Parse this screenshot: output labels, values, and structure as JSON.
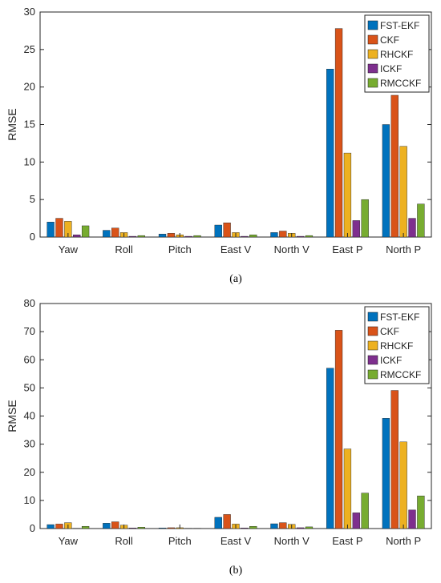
{
  "chart_data": [
    {
      "type": "bar",
      "caption": "(a)",
      "ylabel": "RMSE",
      "ylim": [
        0,
        30
      ],
      "yticks": [
        0,
        5,
        10,
        15,
        20,
        25,
        30
      ],
      "categories": [
        "Yaw",
        "Roll",
        "Pitch",
        "East V",
        "North V",
        "East P",
        "North P"
      ],
      "legend_position": "top-right",
      "series": [
        {
          "name": "FST-EKF",
          "color": "#0072BD",
          "values": [
            2.0,
            0.9,
            0.4,
            1.6,
            0.6,
            22.4,
            15.0
          ]
        },
        {
          "name": "CKF",
          "color": "#D95319",
          "values": [
            2.5,
            1.2,
            0.5,
            1.9,
            0.8,
            27.8,
            18.9
          ]
        },
        {
          "name": "RHCKF",
          "color": "#EDB120",
          "values": [
            2.1,
            0.6,
            0.3,
            0.6,
            0.5,
            11.2,
            12.1
          ]
        },
        {
          "name": "ICKF",
          "color": "#7E2F8E",
          "values": [
            0.3,
            0.1,
            0.1,
            0.1,
            0.1,
            2.2,
            2.5
          ]
        },
        {
          "name": "RMCCKF",
          "color": "#77AC30",
          "values": [
            1.5,
            0.2,
            0.2,
            0.3,
            0.2,
            5.0,
            4.4
          ]
        }
      ]
    },
    {
      "type": "bar",
      "caption": "(b)",
      "ylabel": "RMSE",
      "ylim": [
        0,
        80
      ],
      "yticks": [
        0,
        10,
        20,
        30,
        40,
        50,
        60,
        70,
        80
      ],
      "categories": [
        "Yaw",
        "Roll",
        "Pitch",
        "East V",
        "North V",
        "East P",
        "North P"
      ],
      "legend_position": "top-right",
      "series": [
        {
          "name": "FST-EKF",
          "color": "#0072BD",
          "values": [
            1.4,
            1.9,
            0.2,
            4.0,
            1.7,
            57.0,
            39.2
          ]
        },
        {
          "name": "CKF",
          "color": "#D95319",
          "values": [
            1.6,
            2.4,
            0.3,
            5.0,
            2.1,
            70.5,
            49.1
          ]
        },
        {
          "name": "RHCKF",
          "color": "#EDB120",
          "values": [
            2.1,
            1.2,
            0.3,
            1.6,
            1.5,
            28.3,
            30.8
          ]
        },
        {
          "name": "ICKF",
          "color": "#7E2F8E",
          "values": [
            0.1,
            0.2,
            0.1,
            0.2,
            0.3,
            5.6,
            6.6
          ]
        },
        {
          "name": "RMCCKF",
          "color": "#77AC30",
          "values": [
            0.8,
            0.5,
            0.1,
            0.8,
            0.6,
            12.6,
            11.6
          ]
        }
      ]
    }
  ]
}
